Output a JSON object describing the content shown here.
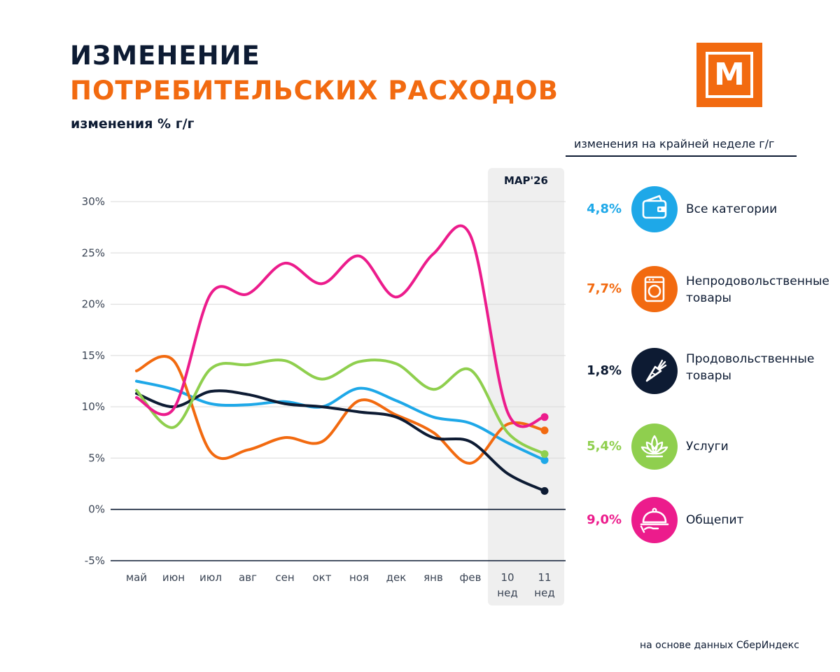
{
  "header": {
    "title_line1": "ИЗМЕНЕНИЕ",
    "title_line2": "ПОТРЕБИТЕЛЬСКИХ РАСХОДОВ",
    "subtitle": "изменения % г/г"
  },
  "logo": {
    "letter": "M",
    "color": "#f26a10"
  },
  "legend": {
    "heading": "изменения на крайней неделе г/г",
    "items": [
      {
        "value": "4,8%",
        "label": "Все категории",
        "color": "#1ea8e8",
        "icon": "wallet-icon"
      },
      {
        "value": "7,7%",
        "label": "Непродовольственные товары",
        "color": "#f26a10",
        "icon": "washing-machine-icon"
      },
      {
        "value": "1,8%",
        "label": "Продовольственные товары",
        "color": "#0d1b33",
        "icon": "carrot-icon"
      },
      {
        "value": "5,4%",
        "label": "Услуги",
        "color": "#8fcf4e",
        "icon": "lotus-icon"
      },
      {
        "value": "9,0%",
        "label": "Общепит",
        "color": "#ec1c8c",
        "icon": "cloche-icon"
      }
    ]
  },
  "source": "на основе данных СберИндекс",
  "chart_data": {
    "type": "line",
    "categories": [
      "май",
      "июн",
      "июл",
      "авг",
      "сен",
      "окт",
      "ноя",
      "дек",
      "янв",
      "фев",
      "10 нед",
      "11 нед"
    ],
    "y_ticks": [
      "30%",
      "25%",
      "20%",
      "15%",
      "10%",
      "5%",
      "0%",
      "-5%"
    ],
    "ylim": [
      -5,
      30
    ],
    "y_unit": "%",
    "grid": true,
    "highlight": {
      "label": "МАР'26",
      "from": "10 нед",
      "to": "11 нед"
    },
    "series": [
      {
        "name": "Все категории",
        "color": "#1ea8e8",
        "values": [
          12.5,
          11.7,
          10.3,
          10.2,
          10.5,
          10.0,
          11.8,
          10.6,
          9.0,
          8.4,
          6.5,
          4.8
        ]
      },
      {
        "name": "Непродовольственные товары",
        "color": "#f26a10",
        "values": [
          13.5,
          14.5,
          5.6,
          5.8,
          7.0,
          6.6,
          10.6,
          9.2,
          7.5,
          4.5,
          8.3,
          7.7
        ]
      },
      {
        "name": "Продовольственные товары",
        "color": "#0d1b33",
        "values": [
          11.3,
          10.0,
          11.5,
          11.2,
          10.3,
          10.0,
          9.5,
          9.0,
          7.0,
          6.6,
          3.5,
          1.8
        ]
      },
      {
        "name": "Услуги",
        "color": "#8fcf4e",
        "values": [
          11.6,
          8.0,
          13.7,
          14.1,
          14.5,
          12.7,
          14.4,
          14.2,
          11.7,
          13.6,
          7.5,
          5.4
        ]
      },
      {
        "name": "Общепит",
        "color": "#ec1c8c",
        "values": [
          10.9,
          9.8,
          21.0,
          21.0,
          24.0,
          22.0,
          24.7,
          20.7,
          24.9,
          26.7,
          9.5,
          9.0
        ]
      }
    ]
  }
}
